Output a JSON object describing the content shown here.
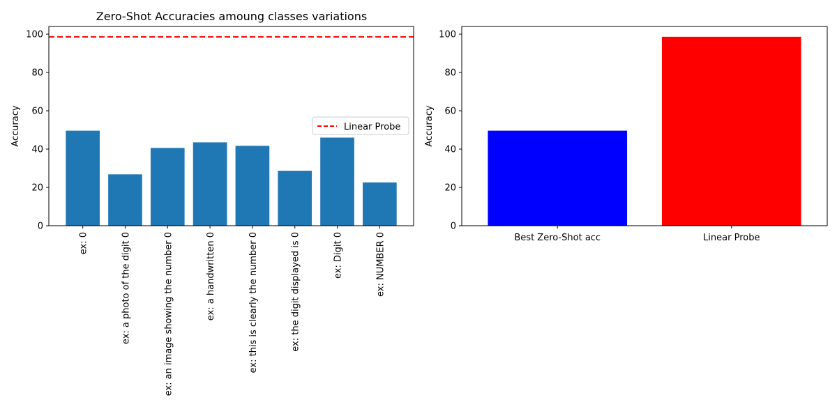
{
  "chart_data": [
    {
      "type": "bar",
      "title": "Zero-Shot Accuracies amoung classes variations",
      "xlabel": "",
      "ylabel": "Accuracy",
      "ylim": [
        0,
        104
      ],
      "yticks": [
        0,
        20,
        40,
        60,
        80,
        100
      ],
      "grid": false,
      "legend_position": "center-right",
      "categories": [
        "ex: 0",
        "ex: a photo of the digit 0",
        "ex: an image showing the number 0",
        "ex: a handwritten 0",
        "ex: this is clearly the number 0",
        "ex: the digit displayed is 0",
        "ex: Digit 0",
        "ex: NUMBER 0"
      ],
      "values": [
        49.6,
        26.8,
        40.6,
        43.5,
        41.7,
        28.7,
        46.0,
        22.6
      ],
      "bar_color": "#1f77b4",
      "reference_line": {
        "name": "Linear Probe",
        "value": 98.6,
        "color": "#ff0000",
        "style": "dashed"
      }
    },
    {
      "type": "bar",
      "title": "",
      "xlabel": "",
      "ylabel": "Accuracy",
      "ylim": [
        0,
        104
      ],
      "yticks": [
        0,
        20,
        40,
        60,
        80,
        100
      ],
      "grid": false,
      "categories": [
        "Best Zero-Shot acc",
        "Linear Probe"
      ],
      "values": [
        49.6,
        98.6
      ],
      "colors": [
        "#0000ff",
        "#ff0000"
      ]
    }
  ]
}
